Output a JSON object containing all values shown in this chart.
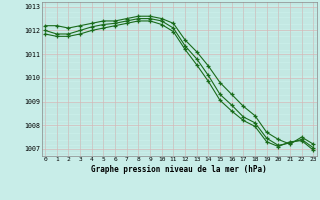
{
  "x": [
    0,
    1,
    2,
    3,
    4,
    5,
    6,
    7,
    8,
    9,
    10,
    11,
    12,
    13,
    14,
    15,
    16,
    17,
    18,
    19,
    20,
    21,
    22,
    23
  ],
  "line1": [
    1012.2,
    1012.2,
    1012.1,
    1012.2,
    1012.3,
    1012.4,
    1012.4,
    1012.5,
    1012.6,
    1012.6,
    1012.5,
    1012.3,
    1011.6,
    1011.1,
    1010.5,
    1009.8,
    1009.3,
    1008.8,
    1008.4,
    1007.7,
    1007.4,
    1007.2,
    1007.5,
    1007.2
  ],
  "line2": [
    1012.0,
    1011.85,
    1011.85,
    1012.0,
    1012.15,
    1012.25,
    1012.3,
    1012.4,
    1012.5,
    1012.5,
    1012.4,
    1012.1,
    1011.35,
    1010.8,
    1010.1,
    1009.3,
    1008.85,
    1008.35,
    1008.1,
    1007.45,
    1007.15,
    1007.25,
    1007.4,
    1007.05
  ],
  "line3": [
    1011.85,
    1011.75,
    1011.75,
    1011.85,
    1012.0,
    1012.1,
    1012.2,
    1012.3,
    1012.4,
    1012.4,
    1012.25,
    1011.95,
    1011.2,
    1010.55,
    1009.85,
    1009.05,
    1008.6,
    1008.2,
    1007.95,
    1007.3,
    1007.1,
    1007.3,
    1007.35,
    1006.95
  ],
  "line_color": "#1a6b1a",
  "bg_color": "#c8ede8",
  "grid_color_major": "#d4b8b8",
  "grid_color_minor": "#b0d8d0",
  "axis_label": "Graphe pression niveau de la mer (hPa)",
  "ylabel_ticks": [
    1007,
    1008,
    1009,
    1010,
    1011,
    1012,
    1013
  ],
  "xticks": [
    0,
    1,
    2,
    3,
    4,
    5,
    6,
    7,
    8,
    9,
    10,
    11,
    12,
    13,
    14,
    15,
    16,
    17,
    18,
    19,
    20,
    21,
    22,
    23
  ],
  "ylim": [
    1006.7,
    1013.2
  ],
  "xlim": [
    -0.3,
    23.3
  ],
  "marker": "+"
}
